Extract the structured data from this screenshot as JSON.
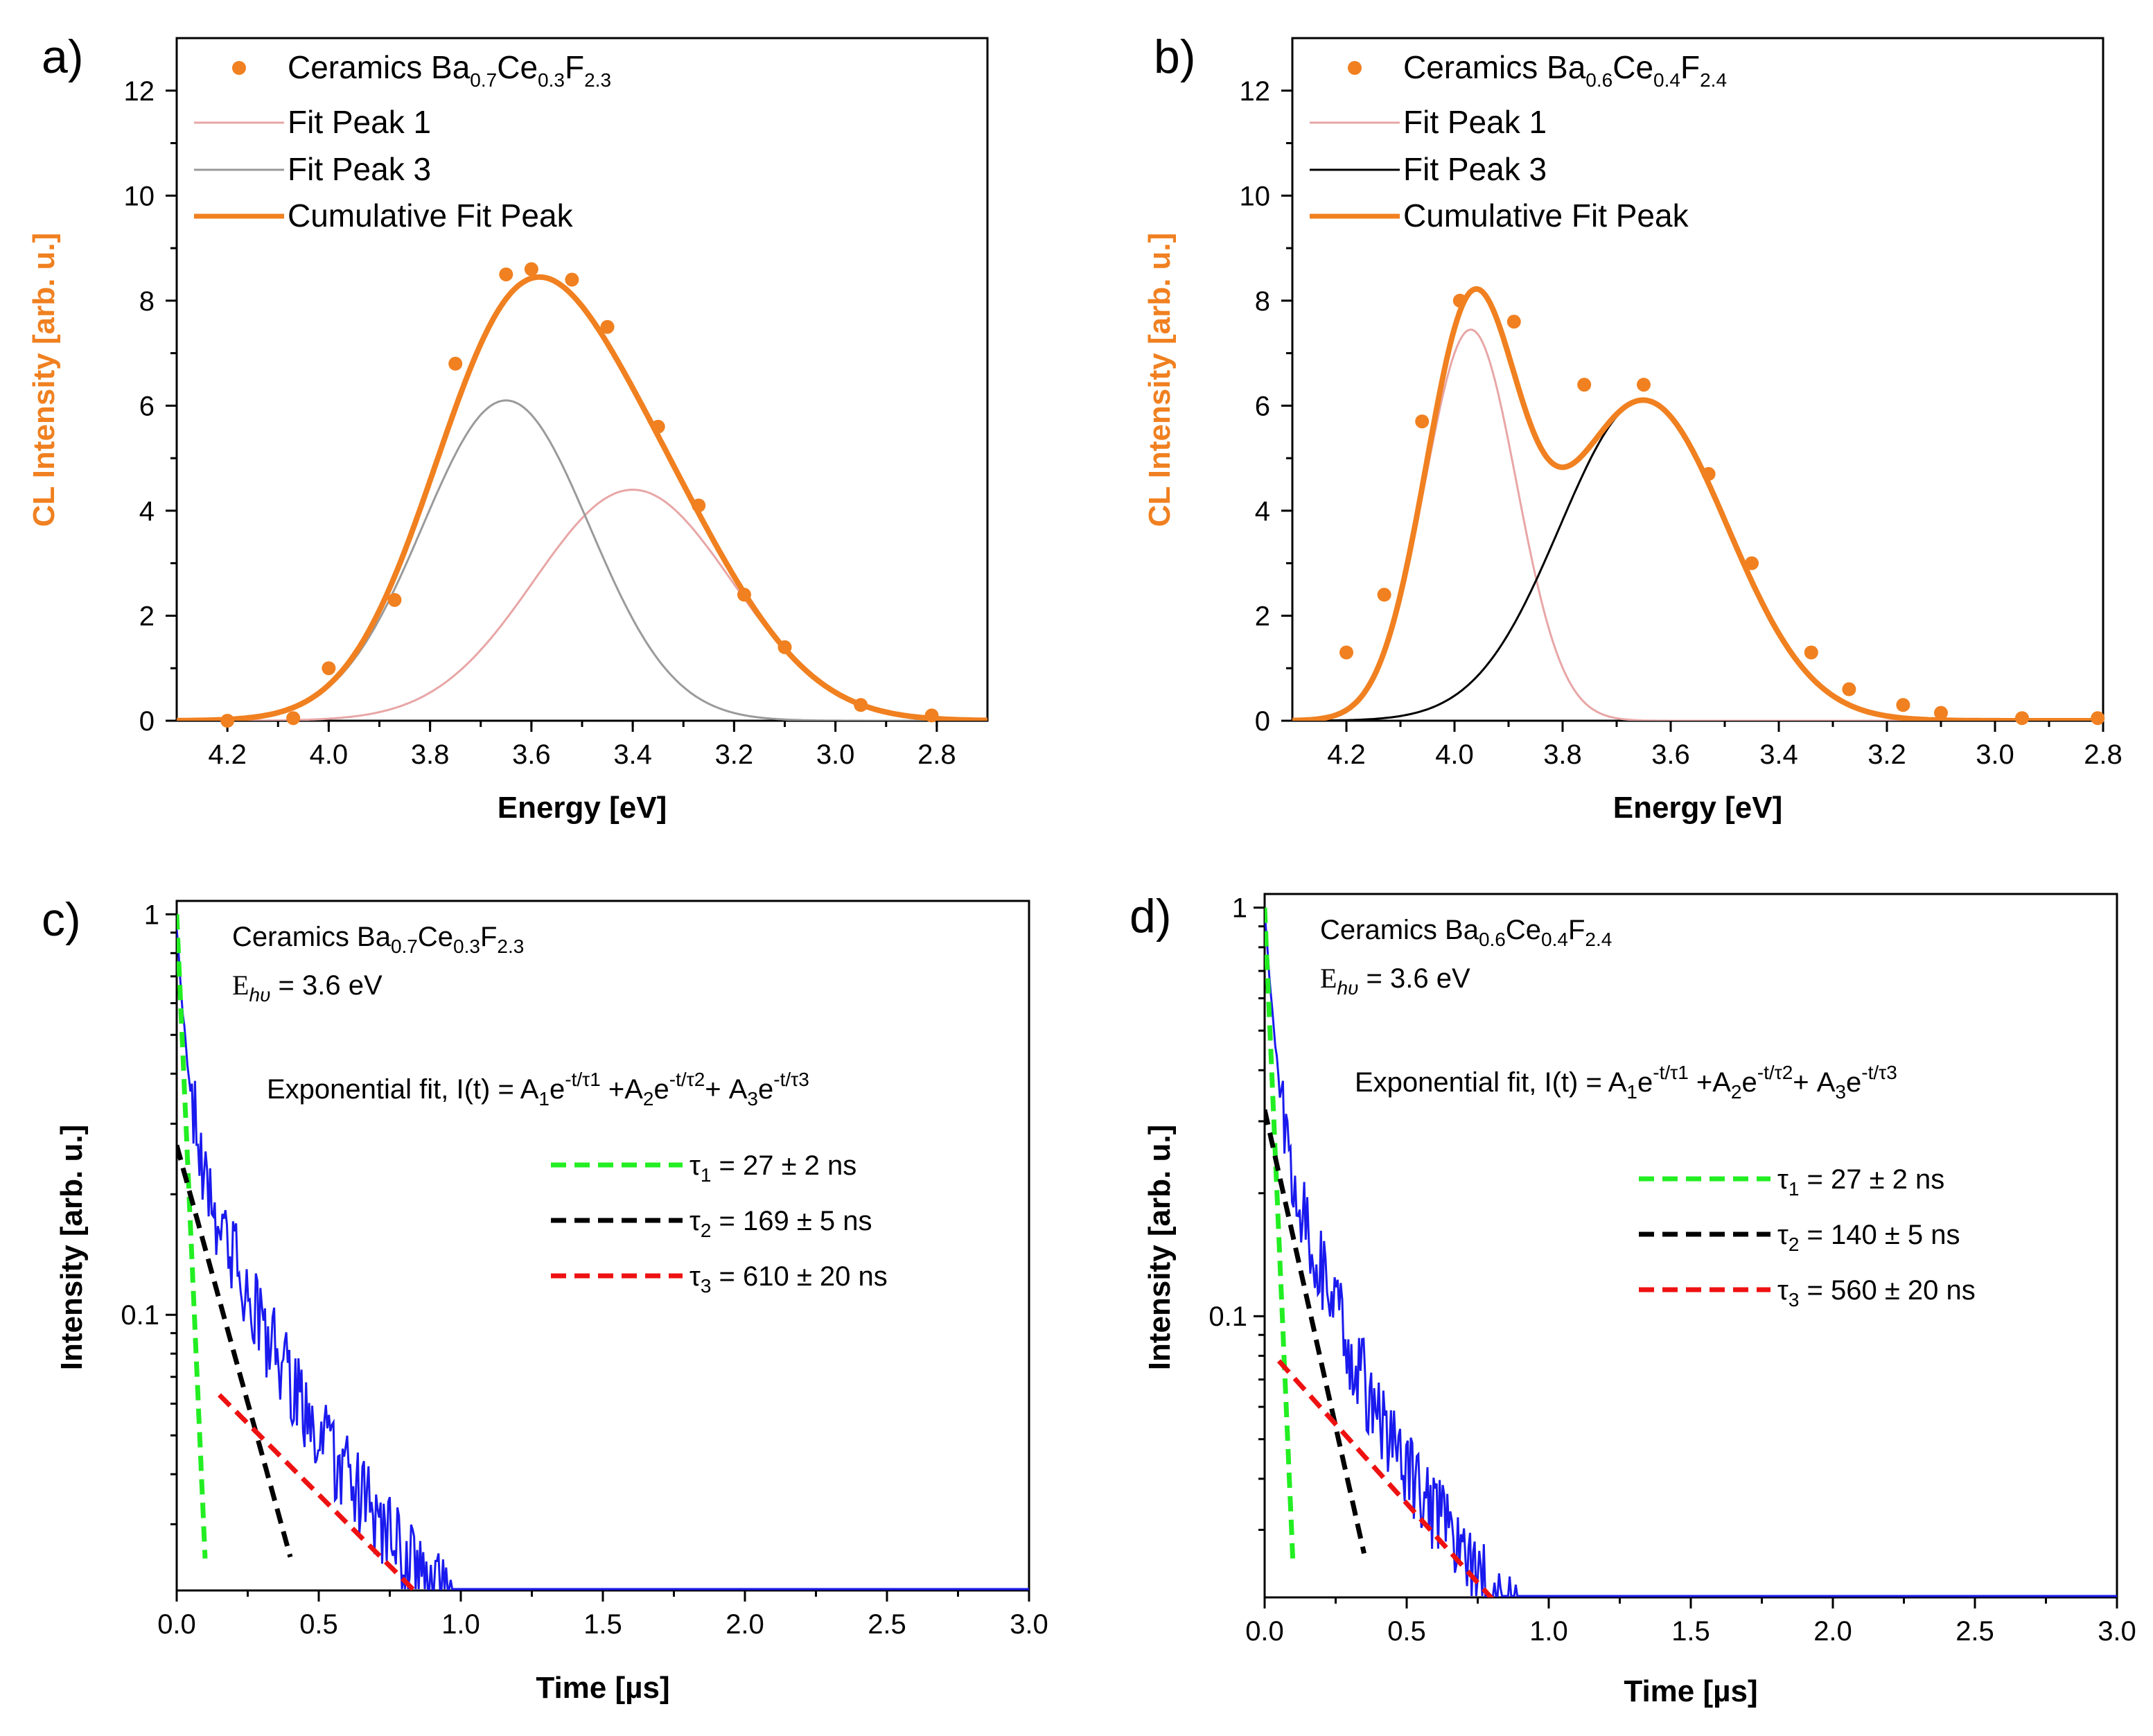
{
  "chart_data": [
    {
      "id": "a",
      "panel_label": "a)",
      "type": "scatter",
      "xlabel": "Energy [eV]",
      "ylabel": "CL Intensity [arb. u.]",
      "xlim": [
        4.3,
        2.7
      ],
      "ylim": [
        0,
        13
      ],
      "xticks": [
        "4.2",
        "4.0",
        "3.8",
        "3.6",
        "3.4",
        "3.2",
        "3.0",
        "2.8"
      ],
      "yticks": [
        "0",
        "2",
        "4",
        "6",
        "8",
        "10",
        "12"
      ],
      "legend": {
        "points": "Ceramics Ba",
        "points_sub1": "0.7",
        "points_mid1": "Ce",
        "points_sub2": "0.3",
        "points_mid2": "F",
        "points_sub3": "2.3",
        "peak1": "Fit Peak 1",
        "peak3": "Fit Peak 3",
        "cumulative": "Cumulative Fit Peak"
      },
      "points": {
        "x": [
          4.2,
          4.07,
          4.0,
          3.87,
          3.75,
          3.65,
          3.6,
          3.52,
          3.45,
          3.35,
          3.27,
          3.18,
          3.1,
          2.95,
          2.81
        ],
        "y": [
          0.0,
          0.05,
          1.0,
          2.3,
          6.8,
          8.5,
          8.6,
          8.4,
          7.5,
          5.6,
          4.1,
          2.4,
          1.4,
          0.3,
          0.1
        ]
      },
      "fit_peaks": [
        {
          "name": "Fit Peak 1",
          "center": 3.4,
          "amplitude": 4.4,
          "sigma": 0.195
        },
        {
          "name": "Fit Peak 3",
          "center": 3.65,
          "amplitude": 6.1,
          "sigma": 0.165
        }
      ],
      "colors": {
        "points": "#f08020",
        "peak1": "#e8a6a6",
        "peak3": "#9a9a9a",
        "cumulative": "#f08020",
        "ylabel": "#f08020"
      }
    },
    {
      "id": "b",
      "panel_label": "b)",
      "type": "scatter",
      "xlabel": "Energy [eV]",
      "ylabel": "CL Intensity [arb. u.]",
      "xlim": [
        4.3,
        2.8
      ],
      "ylim": [
        0,
        13
      ],
      "xticks": [
        "4.2",
        "4.0",
        "3.8",
        "3.6",
        "3.4",
        "3.2",
        "3.0",
        "2.8"
      ],
      "yticks": [
        "0",
        "2",
        "4",
        "6",
        "8",
        "10",
        "12"
      ],
      "legend": {
        "points": "Ceramics Ba",
        "points_sub1": "0.6",
        "points_mid1": "Ce",
        "points_sub2": "0.4",
        "points_mid2": "F",
        "points_sub3": "2.4",
        "peak1": "Fit Peak 1",
        "peak3": "Fit Peak 3",
        "cumulative": "Cumulative Fit Peak"
      },
      "points": {
        "x": [
          4.2,
          4.13,
          4.06,
          3.99,
          3.89,
          3.76,
          3.65,
          3.53,
          3.45,
          3.34,
          3.27,
          3.17,
          3.1,
          2.95,
          2.81
        ],
        "y": [
          1.3,
          2.4,
          5.7,
          8.0,
          7.6,
          6.4,
          6.4,
          4.7,
          3.0,
          1.3,
          0.6,
          0.3,
          0.15,
          0.05,
          0.05
        ]
      },
      "fit_peaks": [
        {
          "name": "Fit Peak 1",
          "center": 3.97,
          "amplitude": 7.45,
          "sigma": 0.085
        },
        {
          "name": "Fit Peak 3",
          "center": 3.65,
          "amplitude": 6.1,
          "sigma": 0.155
        }
      ],
      "colors": {
        "points": "#f08020",
        "peak1": "#e8a6a6",
        "peak3": "#000000",
        "cumulative": "#f08020",
        "ylabel": "#f08020"
      }
    },
    {
      "id": "c",
      "panel_label": "c)",
      "type": "line",
      "yscale": "log",
      "xlabel": "Time [µs]",
      "ylabel": "Intensity [arb. u.]",
      "xlim": [
        0,
        3.0
      ],
      "ylim": [
        0.0205,
        1.08
      ],
      "xticks": [
        "0.0",
        "0.5",
        "1.0",
        "1.5",
        "2.0",
        "2.5",
        "3.0"
      ],
      "yticks": [
        "1",
        "0.1"
      ],
      "sample": {
        "prefix": "Ceramics Ba",
        "s1": "0.7",
        "m1": "Ce",
        "s2": "0.3",
        "m2": "F",
        "s3": "2.3"
      },
      "energy": {
        "prefix": "E",
        "sub": "hυ",
        "value": " = 3.6 eV"
      },
      "fit_formula": {
        "lead": "Exponential fit, I(t) = A",
        "n1": "1",
        "e": "e",
        "exp1": "-t/τ1",
        "plus2": " +A",
        "n2": "2",
        "exp2": "-t/τ2",
        "plus3": "+ A",
        "n3": "3",
        "exp3": "-t/τ3"
      },
      "fits": [
        {
          "tau_sym": "τ",
          "tau_idx": "1",
          "label": " = 27 ± 2 ns",
          "tau_ns": 27,
          "amplitude": 1.0,
          "t_range": [
            0,
            0.1
          ],
          "color": "#22ee22"
        },
        {
          "tau_sym": "τ",
          "tau_idx": "2",
          "label": " = 169 ± 5 ns",
          "tau_ns": 169,
          "amplitude": 0.265,
          "t_range": [
            0,
            0.4
          ],
          "color": "#000000"
        },
        {
          "tau_sym": "τ",
          "tau_idx": "3",
          "label": " = 610 ± 20 ns",
          "tau_ns": 610,
          "amplitude": 0.0807,
          "t_range": [
            0.15,
            1.3
          ],
          "color": "#ee1111"
        }
      ],
      "decay_model": {
        "A1": 0.6,
        "tau1_ns": 27,
        "A2": 0.25,
        "tau2_ns": 169,
        "A3": 0.085,
        "tau3_ns": 610
      },
      "data_color": "#1a1aee"
    },
    {
      "id": "d",
      "panel_label": "d)",
      "type": "line",
      "yscale": "log",
      "xlabel": "Time [µs]",
      "ylabel": "Intensity [arb. u.]",
      "xlim": [
        0,
        3.0
      ],
      "ylim": [
        0.0205,
        1.08
      ],
      "xticks": [
        "0.0",
        "0.5",
        "1.0",
        "1.5",
        "2.0",
        "2.5",
        "3.0"
      ],
      "yticks": [
        "1",
        "0.1"
      ],
      "sample": {
        "prefix": "Ceramics Ba",
        "s1": "0.6",
        "m1": "Ce",
        "s2": "0.4",
        "m2": "F",
        "s3": "2.4"
      },
      "energy": {
        "prefix": "E",
        "sub": "hυ",
        "value": " = 3.6 eV"
      },
      "fit_formula": {
        "lead": "Exponential fit, I(t) = A",
        "n1": "1",
        "e": "e",
        "exp1": "-t/τ1",
        "plus2": " +A",
        "n2": "2",
        "exp2": "-t/τ2",
        "plus3": "+ A",
        "n3": "3",
        "exp3": "-t/τ3"
      },
      "fits": [
        {
          "tau_sym": "τ",
          "tau_idx": "1",
          "label": " = 27 ± 2 ns",
          "tau_ns": 27,
          "amplitude": 1.0,
          "t_range": [
            0,
            0.1
          ],
          "color": "#22ee22"
        },
        {
          "tau_sym": "τ",
          "tau_idx": "2",
          "label": " = 140 ± 5 ns",
          "tau_ns": 140,
          "amplitude": 0.32,
          "t_range": [
            0,
            0.35
          ],
          "color": "#000000"
        },
        {
          "tau_sym": "τ",
          "tau_idx": "3",
          "label": " = 560 ± 20 ns",
          "tau_ns": 560,
          "amplitude": 0.085,
          "t_range": [
            0.05,
            1.25
          ],
          "color": "#ee1111"
        }
      ],
      "decay_model": {
        "A1": 0.62,
        "tau1_ns": 27,
        "A2": 0.3,
        "tau2_ns": 140,
        "A3": 0.082,
        "tau3_ns": 560
      },
      "data_color": "#1a1aee"
    }
  ]
}
